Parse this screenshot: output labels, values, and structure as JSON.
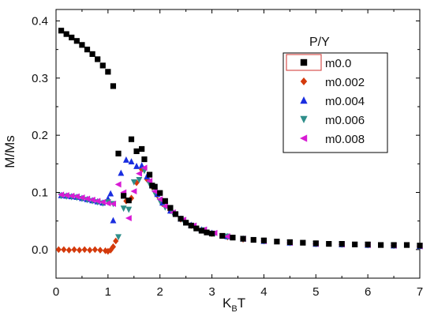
{
  "chart_data": {
    "type": "scatter",
    "xlabel": "K",
    "xlabel_sub": "B",
    "xlabel_tail": "T",
    "ylabel": "M/Ms",
    "xlim": [
      0,
      7
    ],
    "ylim": [
      -0.05,
      0.42
    ],
    "xticks": [
      0,
      1,
      2,
      3,
      4,
      5,
      6,
      7
    ],
    "yticks": [
      0.0,
      0.1,
      0.2,
      0.3,
      0.4
    ],
    "ytick_labels": [
      "0.0",
      "0.1",
      "0.2",
      "0.3",
      "0.4"
    ],
    "grid": false,
    "legend_title": "P/Y",
    "legend_position": "top-right",
    "series": [
      {
        "name": "m0.0",
        "marker": "square",
        "color": "#000000",
        "points": [
          [
            0.1,
            0.383
          ],
          [
            0.2,
            0.377
          ],
          [
            0.3,
            0.371
          ],
          [
            0.4,
            0.365
          ],
          [
            0.5,
            0.358
          ],
          [
            0.6,
            0.35
          ],
          [
            0.7,
            0.342
          ],
          [
            0.8,
            0.333
          ],
          [
            0.9,
            0.322
          ],
          [
            1.0,
            0.311
          ],
          [
            1.1,
            0.286
          ],
          [
            1.2,
            0.168
          ],
          [
            1.3,
            0.094
          ],
          [
            1.4,
            0.086
          ],
          [
            1.45,
            0.193
          ],
          [
            1.55,
            0.172
          ],
          [
            1.65,
            0.176
          ],
          [
            1.7,
            0.158
          ],
          [
            1.8,
            0.131
          ],
          [
            1.85,
            0.112
          ],
          [
            1.9,
            0.11
          ],
          [
            2.0,
            0.099
          ],
          [
            2.1,
            0.085
          ],
          [
            2.2,
            0.073
          ],
          [
            2.3,
            0.062
          ],
          [
            2.4,
            0.054
          ],
          [
            2.5,
            0.047
          ],
          [
            2.6,
            0.042
          ],
          [
            2.7,
            0.037
          ],
          [
            2.8,
            0.033
          ],
          [
            2.9,
            0.03
          ],
          [
            3.0,
            0.028
          ],
          [
            3.2,
            0.024
          ],
          [
            3.4,
            0.021
          ],
          [
            3.6,
            0.019
          ],
          [
            3.8,
            0.017
          ],
          [
            4.0,
            0.016
          ],
          [
            4.25,
            0.014
          ],
          [
            4.5,
            0.013
          ],
          [
            4.75,
            0.012
          ],
          [
            5.0,
            0.011
          ],
          [
            5.25,
            0.01
          ],
          [
            5.5,
            0.01
          ],
          [
            5.75,
            0.009
          ],
          [
            6.0,
            0.009
          ],
          [
            6.25,
            0.008
          ],
          [
            6.5,
            0.008
          ],
          [
            6.75,
            0.008
          ],
          [
            7.0,
            0.007
          ]
        ]
      },
      {
        "name": "m0.002",
        "marker": "diamond",
        "color": "#d43a0c",
        "points": [
          [
            0.05,
            0.0
          ],
          [
            0.15,
            0.0
          ],
          [
            0.25,
            -0.001
          ],
          [
            0.35,
            0.0
          ],
          [
            0.45,
            -0.001
          ],
          [
            0.55,
            0.0
          ],
          [
            0.65,
            -0.001
          ],
          [
            0.75,
            0.0
          ],
          [
            0.85,
            -0.001
          ],
          [
            0.95,
            -0.002
          ],
          [
            1.0,
            -0.003
          ],
          [
            1.05,
            -0.001
          ],
          [
            1.1,
            0.005
          ],
          [
            1.15,
            0.015
          ],
          [
            1.35,
            0.085
          ],
          [
            1.45,
            0.09
          ],
          [
            1.55,
            0.117
          ],
          [
            1.65,
            0.14
          ],
          [
            1.75,
            0.123
          ],
          [
            1.85,
            0.11
          ],
          [
            1.95,
            0.095
          ],
          [
            2.05,
            0.08
          ],
          [
            2.2,
            0.068
          ],
          [
            2.4,
            0.053
          ],
          [
            2.6,
            0.042
          ],
          [
            2.8,
            0.034
          ],
          [
            3.0,
            0.028
          ],
          [
            3.3,
            0.022
          ],
          [
            3.6,
            0.018
          ],
          [
            4.0,
            0.015
          ],
          [
            4.5,
            0.012
          ],
          [
            5.0,
            0.01
          ],
          [
            5.5,
            0.009
          ],
          [
            6.0,
            0.008
          ],
          [
            6.5,
            0.007
          ],
          [
            7.0,
            0.006
          ]
        ]
      },
      {
        "name": "m0.004",
        "marker": "triangle-up",
        "color": "#1a2ee0",
        "points": [
          [
            0.1,
            0.095
          ],
          [
            0.2,
            0.094
          ],
          [
            0.3,
            0.093
          ],
          [
            0.4,
            0.092
          ],
          [
            0.5,
            0.09
          ],
          [
            0.6,
            0.088
          ],
          [
            0.7,
            0.086
          ],
          [
            0.8,
            0.084
          ],
          [
            0.9,
            0.082
          ],
          [
            1.0,
            0.089
          ],
          [
            1.05,
            0.098
          ],
          [
            1.1,
            0.051
          ],
          [
            1.25,
            0.134
          ],
          [
            1.35,
            0.157
          ],
          [
            1.45,
            0.154
          ],
          [
            1.55,
            0.146
          ],
          [
            1.65,
            0.147
          ],
          [
            1.75,
            0.128
          ],
          [
            1.85,
            0.112
          ],
          [
            1.95,
            0.097
          ],
          [
            2.05,
            0.082
          ],
          [
            2.2,
            0.068
          ],
          [
            2.4,
            0.054
          ],
          [
            2.6,
            0.043
          ],
          [
            2.8,
            0.035
          ],
          [
            3.0,
            0.029
          ],
          [
            3.3,
            0.023
          ],
          [
            3.6,
            0.019
          ],
          [
            4.0,
            0.015
          ],
          [
            4.5,
            0.012
          ],
          [
            5.0,
            0.01
          ],
          [
            5.5,
            0.009
          ],
          [
            6.0,
            0.008
          ],
          [
            6.5,
            0.007
          ],
          [
            7.0,
            0.006
          ]
        ]
      },
      {
        "name": "m0.006",
        "marker": "triangle-down",
        "color": "#2f8e8a",
        "points": [
          [
            0.1,
            0.094
          ],
          [
            0.2,
            0.093
          ],
          [
            0.3,
            0.092
          ],
          [
            0.4,
            0.091
          ],
          [
            0.5,
            0.089
          ],
          [
            0.6,
            0.087
          ],
          [
            0.7,
            0.085
          ],
          [
            0.8,
            0.083
          ],
          [
            0.9,
            0.081
          ],
          [
            1.0,
            0.083
          ],
          [
            1.1,
            0.08
          ],
          [
            1.2,
            0.022
          ],
          [
            1.3,
            0.072
          ],
          [
            1.4,
            0.07
          ],
          [
            1.5,
            0.118
          ],
          [
            1.6,
            0.122
          ],
          [
            1.7,
            0.138
          ],
          [
            1.8,
            0.115
          ],
          [
            1.9,
            0.099
          ],
          [
            2.0,
            0.085
          ],
          [
            2.1,
            0.074
          ],
          [
            2.25,
            0.064
          ],
          [
            2.45,
            0.051
          ],
          [
            2.65,
            0.041
          ],
          [
            2.85,
            0.034
          ],
          [
            3.05,
            0.028
          ],
          [
            3.3,
            0.023
          ],
          [
            3.6,
            0.019
          ],
          [
            4.0,
            0.015
          ],
          [
            4.5,
            0.012
          ],
          [
            5.0,
            0.01
          ],
          [
            5.5,
            0.009
          ],
          [
            6.0,
            0.008
          ],
          [
            6.5,
            0.007
          ],
          [
            7.0,
            0.006
          ]
        ]
      },
      {
        "name": "m0.008",
        "marker": "triangle-left",
        "color": "#d81bd4",
        "points": [
          [
            0.1,
            0.096
          ],
          [
            0.2,
            0.095
          ],
          [
            0.3,
            0.094
          ],
          [
            0.4,
            0.093
          ],
          [
            0.5,
            0.091
          ],
          [
            0.6,
            0.089
          ],
          [
            0.7,
            0.087
          ],
          [
            0.8,
            0.085
          ],
          [
            0.9,
            0.083
          ],
          [
            1.0,
            0.081
          ],
          [
            1.1,
            0.08
          ],
          [
            1.2,
            0.114
          ],
          [
            1.3,
            0.1
          ],
          [
            1.4,
            0.055
          ],
          [
            1.5,
            0.102
          ],
          [
            1.6,
            0.133
          ],
          [
            1.7,
            0.143
          ],
          [
            1.8,
            0.12
          ],
          [
            1.9,
            0.102
          ],
          [
            2.0,
            0.088
          ],
          [
            2.1,
            0.076
          ],
          [
            2.25,
            0.065
          ],
          [
            2.45,
            0.052
          ],
          [
            2.65,
            0.042
          ],
          [
            2.85,
            0.035
          ],
          [
            3.05,
            0.029
          ],
          [
            3.3,
            0.023
          ],
          [
            3.6,
            0.019
          ],
          [
            4.0,
            0.015
          ],
          [
            4.5,
            0.012
          ],
          [
            5.0,
            0.01
          ],
          [
            5.5,
            0.009
          ],
          [
            6.0,
            0.008
          ],
          [
            6.5,
            0.007
          ],
          [
            7.0,
            0.006
          ]
        ]
      }
    ]
  }
}
